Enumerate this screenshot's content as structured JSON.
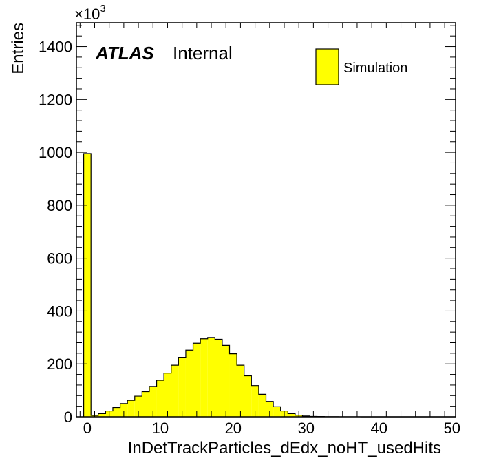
{
  "chart_data": {
    "type": "bar",
    "histogram": true,
    "xlabel": "InDetTrackParticles_dEdx_noHT_usedHits",
    "ylabel": "Entries",
    "y_multiplier": "×10",
    "y_multiplier_exp": "3",
    "xlim": [
      -1.5,
      50.5
    ],
    "ylim": [
      0,
      1490
    ],
    "x_ticks": [
      0,
      10,
      20,
      30,
      40,
      50
    ],
    "y_ticks": [
      0,
      200,
      400,
      600,
      800,
      1000,
      1200,
      1400
    ],
    "bin_width": 1,
    "x": [
      0,
      1,
      2,
      3,
      4,
      5,
      6,
      7,
      8,
      9,
      10,
      11,
      12,
      13,
      14,
      15,
      16,
      17,
      18,
      19,
      20,
      21,
      22,
      23,
      24,
      25,
      26,
      27,
      28,
      29,
      30,
      31,
      32,
      33,
      34,
      35,
      36,
      37,
      38,
      39,
      40,
      41,
      42,
      43,
      44,
      45,
      46,
      47,
      48,
      49,
      50
    ],
    "values": [
      995,
      5,
      12,
      22,
      35,
      50,
      62,
      78,
      95,
      115,
      138,
      165,
      195,
      225,
      252,
      278,
      295,
      300,
      293,
      270,
      238,
      195,
      155,
      118,
      85,
      58,
      38,
      22,
      12,
      6,
      3,
      1.5,
      1,
      0.5,
      0.3,
      0.2,
      0.1,
      0.1,
      0,
      0,
      0,
      0,
      0,
      0,
      0,
      0,
      0,
      0,
      0,
      0,
      0
    ],
    "bar_color": "#ffff00",
    "edge_color": "#000000",
    "grid": false,
    "legend": [
      {
        "name": "Simulation",
        "color": "#ffff00"
      }
    ],
    "legend_position": "top-right",
    "annotation_bold": "ATLAS",
    "annotation_text": "Internal"
  }
}
